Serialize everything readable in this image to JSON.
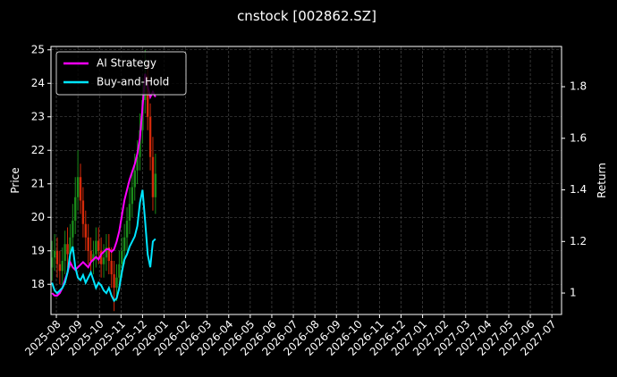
{
  "chart_data": {
    "type": "candlestick",
    "title": "cnstock [002862.SZ]",
    "ylabel": "Price",
    "y2label": "Return",
    "x": [
      -0.2,
      -0.08,
      0.04,
      0.16,
      0.28,
      0.4,
      0.52,
      0.64,
      0.76,
      0.88,
      1.0,
      1.12,
      1.24,
      1.36,
      1.48,
      1.6,
      1.72,
      1.84,
      1.96,
      2.08,
      2.2,
      2.32,
      2.44,
      2.56,
      2.68,
      2.8,
      2.92,
      3.04,
      3.16,
      3.28,
      3.4,
      3.52,
      3.64,
      3.76,
      3.88,
      4.0,
      4.12,
      4.24,
      4.36,
      4.48,
      4.6
    ],
    "open": [
      18.5,
      18.8,
      19.0,
      18.6,
      18.4,
      18.7,
      19.2,
      18.9,
      19.4,
      19.9,
      20.6,
      21.2,
      20.5,
      19.8,
      19.4,
      19.0,
      18.7,
      18.9,
      19.3,
      19.0,
      18.6,
      18.8,
      19.1,
      18.7,
      18.3,
      17.9,
      18.2,
      18.6,
      19.0,
      19.4,
      19.9,
      20.4,
      20.9,
      21.4,
      21.8,
      22.6,
      23.5,
      24.2,
      23.0,
      21.8,
      20.6
    ],
    "high": [
      19.3,
      19.5,
      19.4,
      19.0,
      19.1,
      19.6,
      19.7,
      19.8,
      20.4,
      21.2,
      22.0,
      21.6,
      20.9,
      20.2,
      19.8,
      19.4,
      19.3,
      19.7,
      19.7,
      19.4,
      19.2,
      19.5,
      19.5,
      19.1,
      18.7,
      18.6,
      19.0,
      19.4,
      19.8,
      20.3,
      20.9,
      21.4,
      21.9,
      22.3,
      23.1,
      24.1,
      25.0,
      24.6,
      23.4,
      22.4,
      21.9
    ],
    "low": [
      18.1,
      18.4,
      18.2,
      18.0,
      18.0,
      18.3,
      18.5,
      18.5,
      19.0,
      19.5,
      20.2,
      20.1,
      19.4,
      19.0,
      18.6,
      18.3,
      18.3,
      18.5,
      18.6,
      18.2,
      18.2,
      18.4,
      18.3,
      17.9,
      17.2,
      17.5,
      17.8,
      18.2,
      18.6,
      19.0,
      19.5,
      20.0,
      20.5,
      21.0,
      21.4,
      22.2,
      23.1,
      22.6,
      21.4,
      20.2,
      20.1
    ],
    "close": [
      18.8,
      19.0,
      18.6,
      18.4,
      18.7,
      19.2,
      18.9,
      19.4,
      19.9,
      20.6,
      21.2,
      20.5,
      19.8,
      19.4,
      19.0,
      18.7,
      18.9,
      19.3,
      19.0,
      18.6,
      18.8,
      19.1,
      18.7,
      18.3,
      17.9,
      18.2,
      18.6,
      19.0,
      19.4,
      19.9,
      20.4,
      20.9,
      21.4,
      21.8,
      22.6,
      23.5,
      24.2,
      23.0,
      21.8,
      20.6,
      21.3
    ],
    "up_color": "#1a8a1a",
    "down_color": "#d42a0a",
    "series": [
      {
        "name": "AI Strategy",
        "color": "#ff00ff",
        "axis": "y2",
        "values": [
          1.0,
          0.99,
          0.99,
          1.0,
          1.02,
          1.05,
          1.08,
          1.12,
          1.1,
          1.09,
          1.1,
          1.11,
          1.12,
          1.11,
          1.1,
          1.12,
          1.13,
          1.14,
          1.13,
          1.15,
          1.16,
          1.17,
          1.17,
          1.16,
          1.17,
          1.2,
          1.24,
          1.3,
          1.36,
          1.4,
          1.44,
          1.47,
          1.5,
          1.54,
          1.6,
          1.72,
          1.85,
          1.8,
          1.76,
          1.78,
          1.76
        ]
      },
      {
        "name": "Buy-and-Hold",
        "color": "#00e5ff",
        "axis": "y2",
        "values": [
          1.04,
          1.01,
          1.0,
          1.01,
          1.02,
          1.04,
          1.08,
          1.15,
          1.18,
          1.1,
          1.06,
          1.05,
          1.07,
          1.04,
          1.06,
          1.08,
          1.05,
          1.02,
          1.04,
          1.03,
          1.01,
          1.0,
          1.02,
          0.99,
          0.97,
          0.98,
          1.02,
          1.08,
          1.13,
          1.15,
          1.18,
          1.2,
          1.22,
          1.26,
          1.35,
          1.4,
          1.28,
          1.15,
          1.1,
          1.2,
          1.21
        ]
      }
    ],
    "xlim": [
      -0.25,
      23.45
    ],
    "xticks": [
      {
        "value": 0,
        "label": "2025-08"
      },
      {
        "value": 1,
        "label": "2025-09"
      },
      {
        "value": 2,
        "label": "2025-10"
      },
      {
        "value": 3,
        "label": "2025-11"
      },
      {
        "value": 4,
        "label": "2025-12"
      },
      {
        "value": 5,
        "label": "2026-01"
      },
      {
        "value": 6,
        "label": "2026-02"
      },
      {
        "value": 7,
        "label": "2026-03"
      },
      {
        "value": 8,
        "label": "2026-04"
      },
      {
        "value": 9,
        "label": "2026-05"
      },
      {
        "value": 10,
        "label": "2026-06"
      },
      {
        "value": 11,
        "label": "2026-07"
      },
      {
        "value": 12,
        "label": "2026-08"
      },
      {
        "value": 13,
        "label": "2026-09"
      },
      {
        "value": 14,
        "label": "2026-10"
      },
      {
        "value": 15,
        "label": "2026-11"
      },
      {
        "value": 16,
        "label": "2026-12"
      },
      {
        "value": 17,
        "label": "2027-01"
      },
      {
        "value": 18,
        "label": "2027-02"
      },
      {
        "value": 19,
        "label": "2027-03"
      },
      {
        "value": 20,
        "label": "2027-04"
      },
      {
        "value": 21,
        "label": "2027-05"
      },
      {
        "value": 22,
        "label": "2027-06"
      },
      {
        "value": 23,
        "label": "2027-07"
      }
    ],
    "ylim": [
      17.1,
      25.1
    ],
    "yticks": [
      18,
      19,
      20,
      21,
      22,
      23,
      24,
      25
    ],
    "y2lim": [
      0.917,
      1.956
    ],
    "y2ticks": [
      1.0,
      1.2,
      1.4,
      1.6,
      1.8
    ],
    "grid": true,
    "legend": "upper left"
  }
}
